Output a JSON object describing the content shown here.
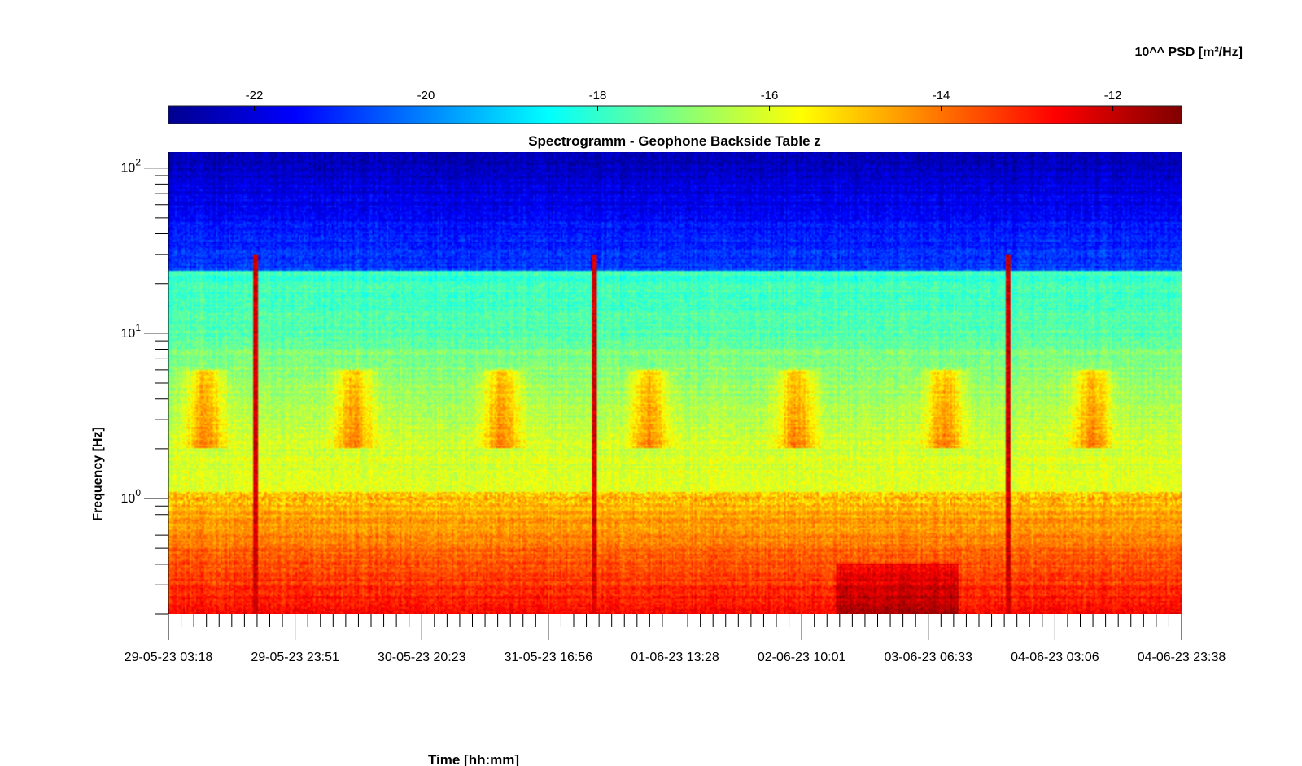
{
  "chart_data": {
    "type": "heatmap",
    "title": "Spectrogramm - Geophone Backside Table z",
    "xlabel": "Time [hh:mm]",
    "ylabel": "Frequency [Hz]",
    "colorbar_label": "10^^ PSD [m²/Hz]",
    "colormap": "jet",
    "color_range": [
      -23,
      -11.2
    ],
    "colorbar_ticks": [
      -22,
      -20,
      -18,
      -16,
      -14,
      -12
    ],
    "y_scale": "log",
    "ylim": [
      0.2,
      125
    ],
    "y_ticks": [
      {
        "base": "10",
        "exp": "2",
        "value": 100
      },
      {
        "base": "10",
        "exp": "1",
        "value": 10
      },
      {
        "base": "10",
        "exp": "0",
        "value": 1
      }
    ],
    "x_tick_labels": [
      "29-05-23 03:18",
      "29-05-23 23:51",
      "30-05-23 20:23",
      "31-05-23 16:56",
      "01-06-23 13:28",
      "02-06-23 10:01",
      "03-06-23 06:33",
      "04-06-23 03:06",
      "04-06-23 23:38"
    ],
    "minor_ticks_per_major": 9,
    "features": {
      "activity_bands_hz": [
        2,
        6
      ],
      "resonance_line_hz": 1.0,
      "transients": [
        "29-05-23 10:00",
        "01-06-23 00:00",
        "04-06-23 10:00"
      ]
    }
  }
}
